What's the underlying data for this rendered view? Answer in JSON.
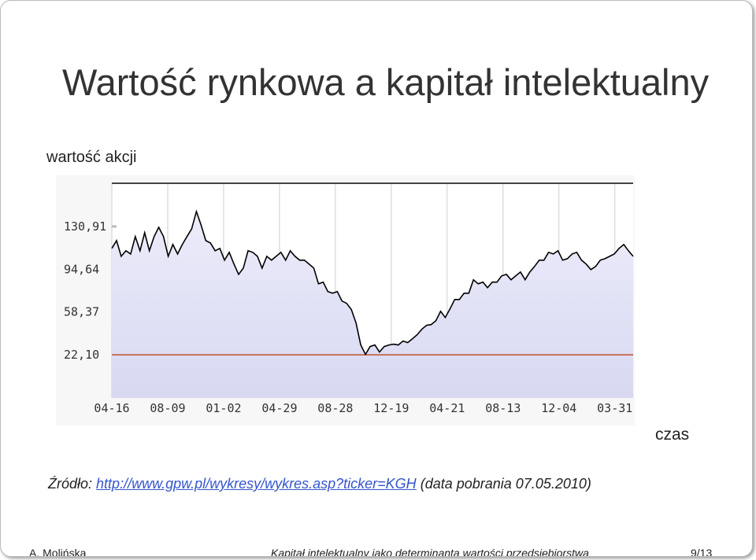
{
  "slide": {
    "title": "Wartość rynkowa a kapitał intelektualny",
    "source_prefix": "Źródło:",
    "source_link": "http://www.gpw.pl/wykresy/wykres.asp?ticker=KGH",
    "source_suffix": "(data pobrania 07.05.2010)",
    "footer_author": "A. Molińska",
    "footer_title": "Kapitał intelektualny jako determinanta wartości przedsiębiorstwa",
    "footer_page": "9/13"
  },
  "chart_data": {
    "type": "line",
    "y_label": "wartość akcji",
    "x_label": "czas",
    "color": "#000000",
    "fill_color": "#dcdcf4",
    "baseline": 22.1,
    "baseline_color": "#c0502a",
    "grid": true,
    "xlim": [
      0,
      111
    ],
    "xticks": [
      {
        "value": 0,
        "label": "04-16"
      },
      {
        "value": 11.9,
        "label": "08-09"
      },
      {
        "value": 23.8,
        "label": "01-02"
      },
      {
        "value": 35.7,
        "label": "04-29"
      },
      {
        "value": 47.6,
        "label": "08-28"
      },
      {
        "value": 59.5,
        "label": "12-19"
      },
      {
        "value": 71.4,
        "label": "04-21"
      },
      {
        "value": 83.3,
        "label": "08-13"
      },
      {
        "value": 95.2,
        "label": "12-04"
      },
      {
        "value": 107.1,
        "label": "03-31"
      }
    ],
    "ylim": [
      -14.5,
      167.5
    ],
    "yticks": [
      {
        "value": 130.91,
        "label": "130,91"
      },
      {
        "value": 94.64,
        "label": "94,64"
      },
      {
        "value": 58.37,
        "label": "58,37"
      },
      {
        "value": 22.1,
        "label": "22,10"
      }
    ],
    "values": [
      112.3,
      118.9,
      105.6,
      110.3,
      107.6,
      122.3,
      110.3,
      125.6,
      110.3,
      122.3,
      130.2,
      122.3,
      105.6,
      115.6,
      107.6,
      115.6,
      122.3,
      128.9,
      143.6,
      132.2,
      118.9,
      116.9,
      110.3,
      112.3,
      102.3,
      109.0,
      99.0,
      90.3,
      95.6,
      110.3,
      109.0,
      105.6,
      95.6,
      105.6,
      102.3,
      105.6,
      109.0,
      102.3,
      110.3,
      105.6,
      102.3,
      102.3,
      99.0,
      95.6,
      82.3,
      83.7,
      75.7,
      74.3,
      75.7,
      67.7,
      65.7,
      60.4,
      49.1,
      30.4,
      22.4,
      29.1,
      30.4,
      24.4,
      29.1,
      30.4,
      31.1,
      30.4,
      33.8,
      32.4,
      35.7,
      39.1,
      43.7,
      47.1,
      47.7,
      51.0,
      59.0,
      53.7,
      61.0,
      69.0,
      69.0,
      74.3,
      74.3,
      85.7,
      82.3,
      83.7,
      79.0,
      83.7,
      83.7,
      89.0,
      90.3,
      85.7,
      89.0,
      92.3,
      85.7,
      92.3,
      97.0,
      102.3,
      102.3,
      109.0,
      107.6,
      110.3,
      102.3,
      103.6,
      107.6,
      109.0,
      102.3,
      99.0,
      94.3,
      97.0,
      102.3,
      103.6,
      105.6,
      107.6,
      112.3,
      115.6,
      110.3,
      105.6
    ]
  }
}
